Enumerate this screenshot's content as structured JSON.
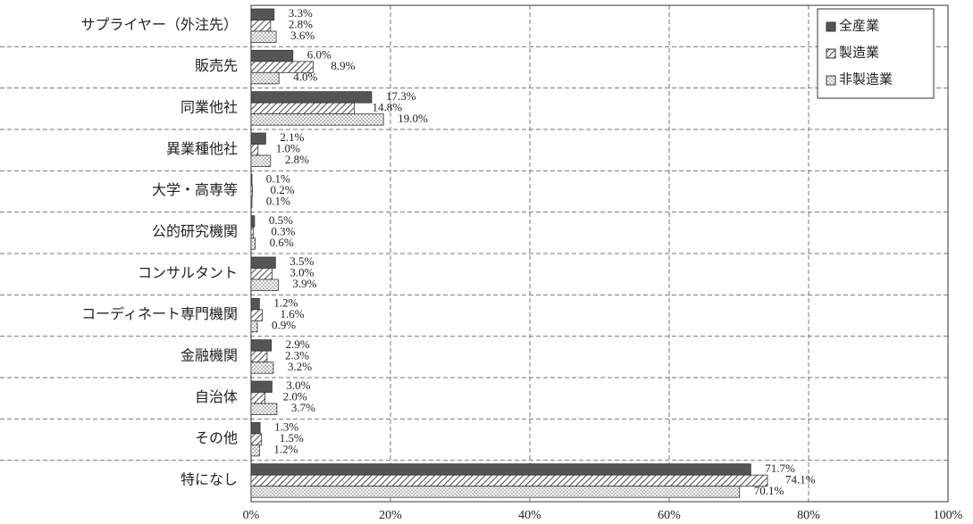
{
  "chart_data": {
    "type": "hbar",
    "categories": [
      "サプライヤー（外注先）",
      "販売先",
      "同業他社",
      "異業種他社",
      "大学・高専等",
      "公的研究機関",
      "コンサルタント",
      "コーディネート専門機関",
      "金融機関",
      "自治体",
      "その他",
      "特になし"
    ],
    "series": [
      {
        "name": "全産業",
        "color": "#555555",
        "pattern": "solid",
        "values": [
          3.3,
          6.0,
          17.3,
          2.1,
          0.1,
          0.5,
          3.5,
          1.2,
          2.9,
          3.0,
          1.3,
          71.7
        ],
        "value_labels": [
          "3.3%",
          "6.0%",
          "17.3%",
          "2.1%",
          "0.1%",
          "0.5%",
          "3.5%",
          "1.2%",
          "2.9%",
          "3.0%",
          "1.3%",
          "71.7%"
        ]
      },
      {
        "name": "製造業",
        "color": "#555555",
        "pattern": "hatch",
        "values": [
          2.8,
          8.9,
          14.8,
          1.0,
          0.2,
          0.3,
          3.0,
          1.6,
          2.3,
          2.0,
          1.5,
          74.1
        ],
        "value_labels": [
          "2.8%",
          "8.9%",
          "14.8%",
          "1.0%",
          "0.2%",
          "0.3%",
          "3.0%",
          "1.6%",
          "2.3%",
          "2.0%",
          "1.5%",
          "74.1%"
        ]
      },
      {
        "name": "非製造業",
        "color": "#555555",
        "pattern": "dots",
        "values": [
          3.6,
          4.0,
          19.0,
          2.8,
          0.1,
          0.6,
          3.9,
          0.9,
          3.2,
          3.7,
          1.2,
          70.1
        ],
        "value_labels": [
          "3.6%",
          "4.0%",
          "19.0%",
          "2.8%",
          "0.1%",
          "0.6%",
          "3.9%",
          "0.9%",
          "3.2%",
          "3.7%",
          "1.2%",
          "70.1%"
        ]
      }
    ],
    "xlim": [
      0,
      100
    ],
    "xticks": [
      {
        "value": 0,
        "label": "0%"
      },
      {
        "value": 20,
        "label": "20%"
      },
      {
        "value": 40,
        "label": "40%"
      },
      {
        "value": 60,
        "label": "60%"
      },
      {
        "value": 80,
        "label": "80%"
      },
      {
        "value": 100,
        "label": "100%"
      }
    ],
    "grid": true,
    "legend": "top-right"
  }
}
